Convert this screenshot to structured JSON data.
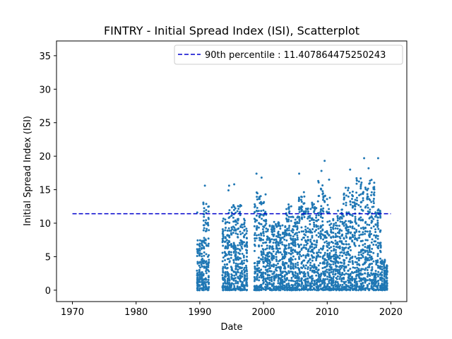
{
  "chart_data": {
    "type": "scatter",
    "title": "FINTRY - Initial Spread Index (ISI), Scatterplot",
    "xlabel": "Date",
    "ylabel": "Initial Spread Index (ISI)",
    "xlim": [
      1967.5,
      2022.5
    ],
    "ylim": [
      -1.7,
      37.2
    ],
    "xticks": [
      1970,
      1980,
      1990,
      2000,
      2010,
      2020
    ],
    "yticks": [
      0,
      5,
      10,
      15,
      20,
      25,
      30,
      35
    ],
    "grid": false,
    "legend_position": "top-right",
    "series": [
      {
        "kind": "scatter",
        "color": "#1f77b4",
        "years": [
          1990,
          1991,
          1994,
          1995,
          1996,
          1997,
          1999,
          2000,
          2001,
          2002,
          2003,
          2004,
          2005,
          2006,
          2007,
          2008,
          2009,
          2010,
          2011,
          2012,
          2013,
          2014,
          2015,
          2016,
          2017,
          2018,
          2019
        ],
        "maxima": [
          8.8,
          15.6,
          12.6,
          15.6,
          15.7,
          12.6,
          17.3,
          16.9,
          11.4,
          12.0,
          11.8,
          15.3,
          13.0,
          17.4,
          14.4,
          15.8,
          19.3,
          16.6,
          12.8,
          14.2,
          18.0,
          17.5,
          19.7,
          18.2,
          19.7,
          14.3,
          5.4
        ],
        "outliers": [
          {
            "x": 1989.6,
            "y": 11.6
          },
          {
            "x": 1990.8,
            "y": 15.6
          },
          {
            "x": 1994.5,
            "y": 14.9
          },
          {
            "x": 1994.6,
            "y": 15.6
          },
          {
            "x": 1995.4,
            "y": 15.8
          },
          {
            "x": 1996.5,
            "y": 12.6
          },
          {
            "x": 1998.9,
            "y": 17.4
          },
          {
            "x": 1999.7,
            "y": 16.8
          },
          {
            "x": 2005.6,
            "y": 17.4
          },
          {
            "x": 2009.1,
            "y": 17.8
          },
          {
            "x": 2009.6,
            "y": 19.3
          },
          {
            "x": 2010.3,
            "y": 16.5
          },
          {
            "x": 2013.6,
            "y": 18.0
          },
          {
            "x": 2015.8,
            "y": 19.7
          },
          {
            "x": 2016.5,
            "y": 18.2
          },
          {
            "x": 2018.0,
            "y": 19.7
          }
        ]
      },
      {
        "kind": "hline",
        "name": "90th percentile : 11.407864475250243",
        "color": "#0000cd",
        "linestyle": "dashed",
        "y": 11.407864475250243,
        "x": [
          1970,
          2020
        ]
      }
    ]
  }
}
